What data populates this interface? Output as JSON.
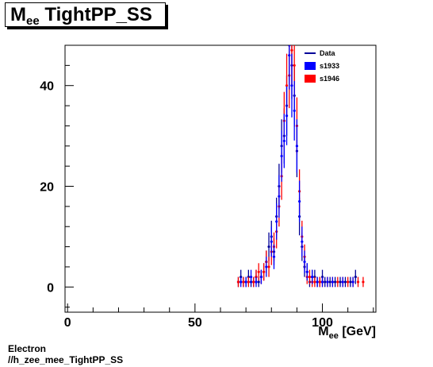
{
  "title": {
    "main": "M",
    "sub": "ee",
    "rest": " TightPP_SS"
  },
  "footer": {
    "line1": "Electron",
    "line2": "//h_zee_mee_TightPP_SS"
  },
  "chart_data": {
    "type": "scatter",
    "xlabel": {
      "main": "M",
      "sub": "ee",
      "rest": " [GeV]"
    },
    "ylabel": "",
    "xlim": [
      -1,
      121
    ],
    "ylim": [
      -5,
      48
    ],
    "x_ticks": [
      0,
      50,
      100
    ],
    "y_ticks": [
      0,
      20,
      40
    ],
    "legend_position": "top-right",
    "legend": [
      {
        "label": "Data",
        "kind": "line",
        "color": "#000099"
      },
      {
        "label": "s1933",
        "kind": "box",
        "color": "#0000ff"
      },
      {
        "label": "s1946",
        "kind": "box",
        "color": "#ff0000"
      }
    ],
    "series": [
      {
        "name": "Data",
        "color": "#000099",
        "x": [
          67,
          68,
          69,
          70,
          71,
          72,
          73,
          74,
          75,
          76,
          77,
          78,
          79,
          80,
          81,
          82,
          83,
          84,
          85,
          86,
          87,
          88,
          89,
          90,
          91,
          92,
          93,
          94,
          95,
          96,
          97,
          98,
          99,
          100,
          101,
          103,
          105,
          107,
          109,
          111,
          113
        ],
        "y": [
          1,
          2,
          1,
          1,
          2,
          1,
          1,
          2,
          1,
          2,
          3,
          5,
          8,
          10,
          7,
          14,
          20,
          28,
          30,
          36,
          48,
          44,
          38,
          27,
          14,
          8,
          4,
          3,
          1,
          2,
          2,
          1,
          1,
          2,
          1,
          1,
          1,
          1,
          1,
          1,
          2
        ]
      },
      {
        "name": "s1946",
        "color": "#ff0000",
        "x": [
          67,
          69,
          71,
          73,
          74,
          75,
          76,
          77,
          78,
          79,
          80,
          81,
          82,
          83,
          84,
          85,
          86,
          87,
          88,
          89,
          90,
          91,
          92,
          93,
          94,
          95,
          96,
          97,
          99,
          100,
          102,
          104,
          106,
          108,
          110,
          112,
          114,
          116
        ],
        "y": [
          1,
          1,
          1,
          1,
          2,
          3,
          2,
          3,
          5,
          4,
          7,
          8,
          11,
          16,
          22,
          33,
          40,
          42,
          47,
          44,
          32,
          19,
          10,
          6,
          2,
          2,
          1,
          1,
          1,
          1,
          1,
          1,
          1,
          1,
          1,
          1,
          1,
          1
        ]
      },
      {
        "name": "s1933",
        "color": "#0000ff",
        "x": [
          68,
          70,
          72,
          74,
          76,
          78,
          80,
          81,
          82,
          83,
          84,
          85,
          86,
          87,
          88,
          89,
          90,
          91,
          92,
          93,
          94,
          96,
          98,
          100,
          102,
          104,
          108,
          112
        ],
        "y": [
          1,
          1,
          2,
          1,
          2,
          4,
          9,
          6,
          13,
          18,
          26,
          29,
          34,
          46,
          40,
          35,
          28,
          17,
          9,
          5,
          3,
          2,
          1,
          1,
          1,
          1,
          1,
          1
        ]
      }
    ]
  }
}
